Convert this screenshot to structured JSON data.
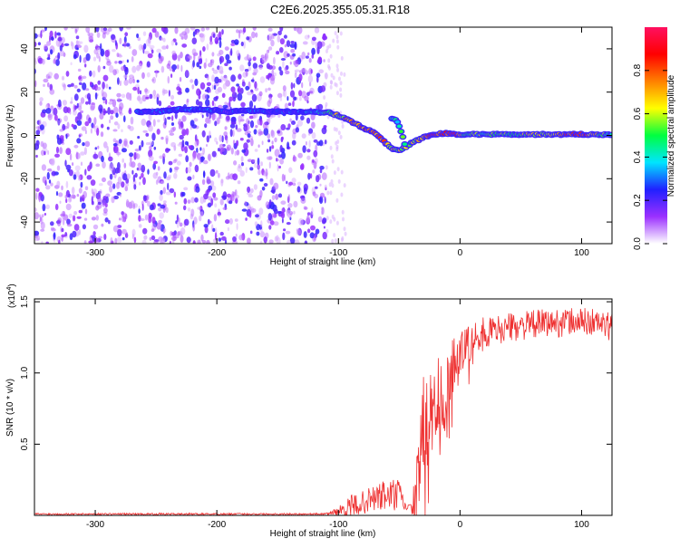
{
  "title": "C2E6.2025.355.05.31.R18",
  "chart_data": [
    {
      "type": "heatmap",
      "name": "spectrogram",
      "xlabel": "Height of straight line (km)",
      "ylabel": "Frequency (Hz)",
      "xlim": [
        -350,
        125
      ],
      "ylim": [
        -50,
        50
      ],
      "xticks": [
        -300,
        -200,
        -100,
        0,
        100
      ],
      "xtick_labels": [
        "-300",
        "-200",
        "-100",
        "0",
        "100"
      ],
      "yticks": [
        -40,
        -20,
        0,
        20,
        40
      ],
      "ytick_labels": [
        "-40",
        "-20",
        "0",
        "20",
        "40"
      ],
      "noise_region_x": [
        -350,
        -110
      ],
      "signal_track": {
        "x": [
          -265,
          -250,
          -230,
          -210,
          -190,
          -170,
          -150,
          -130,
          -115,
          -108,
          -100,
          -92,
          -85,
          -78,
          -70,
          -62,
          -56,
          -50,
          -44,
          -38,
          -30,
          -22,
          -12,
          -5,
          5,
          20,
          40,
          60,
          80,
          100,
          115,
          125
        ],
        "freq": [
          11,
          11,
          12,
          12,
          11,
          11.5,
          11,
          11,
          10.5,
          11,
          9,
          7,
          5,
          3,
          1,
          -3,
          -6,
          -7,
          -5,
          -3,
          -1,
          0.5,
          1,
          0.5,
          0.5,
          0.5,
          0.5,
          0.5,
          0.5,
          0.5,
          0.5,
          0.5
        ],
        "amp": [
          0.28,
          0.25,
          0.28,
          0.25,
          0.22,
          0.25,
          0.22,
          0.28,
          0.4,
          0.55,
          0.62,
          0.68,
          0.72,
          0.78,
          0.8,
          0.72,
          0.62,
          0.6,
          0.55,
          0.58,
          0.7,
          0.85,
          0.8,
          0.9,
          0.5,
          0.5,
          0.55,
          0.6,
          0.65,
          0.9,
          0.55,
          0.5
        ]
      },
      "branch_track": {
        "x": [
          -56,
          -52,
          -48,
          -45
        ],
        "freq": [
          8,
          7,
          1,
          -5
        ],
        "amp": [
          0.35,
          0.4,
          0.5,
          0.55
        ]
      }
    },
    {
      "type": "colorbar",
      "name": "amplitude-colorbar",
      "label": "Normalized spectral amplitude",
      "range": [
        0,
        1
      ],
      "ticks": [
        0.0,
        0.2,
        0.4,
        0.6,
        0.8
      ],
      "tick_labels": [
        "0.0",
        "0.2",
        "0.4",
        "0.6",
        "0.8"
      ],
      "colors": [
        "#ffffff",
        "#9b30ff",
        "#2020ff",
        "#00e5ff",
        "#00ff40",
        "#ffff00",
        "#ff8000",
        "#ff0000",
        "#ff1060"
      ]
    },
    {
      "type": "line",
      "name": "snr-plot",
      "xlabel": "Height of straight line (km)",
      "ylabel": "SNR (10 * v/v)",
      "y_multiplier": "(x10",
      "y_multiplier_exp": "4",
      "y_multiplier_close": ")",
      "xlim": [
        -350,
        125
      ],
      "ylim": [
        0,
        1.52
      ],
      "xticks": [
        -300,
        -200,
        -100,
        0,
        100
      ],
      "xtick_labels": [
        "-300",
        "-200",
        "-100",
        "0",
        "100"
      ],
      "yticks": [
        0.5,
        1.0,
        1.5
      ],
      "ytick_labels": [
        "0.5",
        "1.0",
        "1.5"
      ],
      "color": "#ee3030",
      "envelope": {
        "x": [
          -350,
          -110,
          -100,
          -90,
          -80,
          -70,
          -60,
          -50,
          -45,
          -40,
          -35,
          -30,
          -25,
          -20,
          -15,
          -10,
          -5,
          0,
          10,
          20,
          30,
          40,
          50,
          60,
          70,
          80,
          90,
          100,
          110,
          120,
          125
        ],
        "base": [
          0.01,
          0.01,
          0.03,
          0.06,
          0.09,
          0.12,
          0.14,
          0.14,
          0.06,
          0.05,
          0.15,
          0.6,
          0.7,
          0.8,
          0.85,
          0.95,
          1.05,
          1.15,
          1.22,
          1.28,
          1.3,
          1.32,
          1.33,
          1.34,
          1.35,
          1.35,
          1.36,
          1.36,
          1.36,
          1.33,
          1.32
        ],
        "jitter": [
          0.006,
          0.006,
          0.03,
          0.08,
          0.08,
          0.1,
          0.12,
          0.12,
          0.03,
          0.03,
          0.3,
          0.4,
          0.35,
          0.35,
          0.3,
          0.25,
          0.2,
          0.15,
          0.12,
          0.12,
          0.1,
          0.1,
          0.1,
          0.1,
          0.1,
          0.1,
          0.1,
          0.1,
          0.1,
          0.1,
          0.1
        ]
      }
    }
  ]
}
